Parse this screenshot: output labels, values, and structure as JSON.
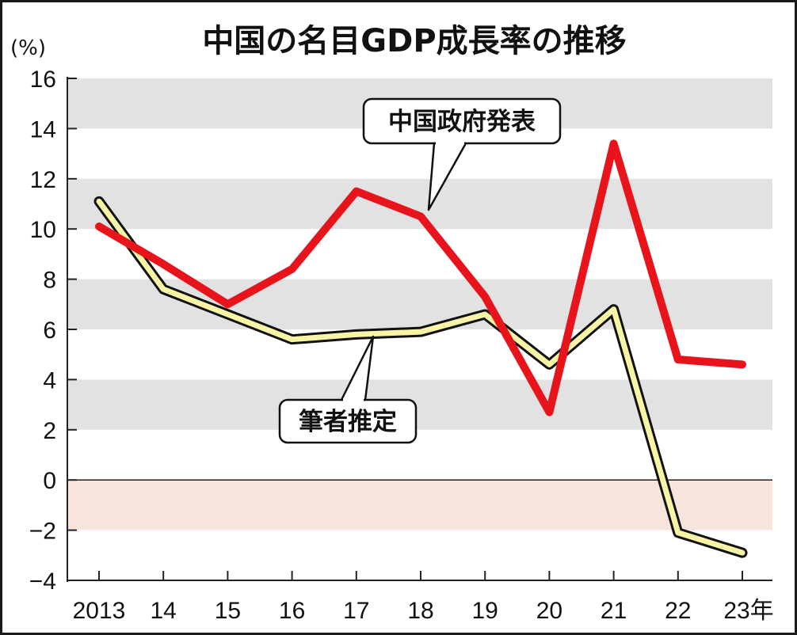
{
  "chart_data": {
    "type": "line",
    "title": "中国の名目GDP成長率の推移",
    "unit_label": "(%)",
    "categories": [
      "2013",
      "14",
      "15",
      "16",
      "17",
      "18",
      "19",
      "20",
      "21",
      "22",
      "23年"
    ],
    "x": [
      2013,
      2014,
      2015,
      2016,
      2017,
      2018,
      2019,
      2020,
      2021,
      2022,
      2023
    ],
    "ylim": [
      -4,
      16
    ],
    "yticks": [
      16,
      14,
      12,
      10,
      8,
      6,
      4,
      2,
      0,
      -2,
      -4
    ],
    "ytick_labels": [
      "16",
      "14",
      "12",
      "10",
      "8",
      "6",
      "4",
      "2",
      "0",
      "−2",
      "−4"
    ],
    "grid": "alternating horizontal gray bands; pink band below 0",
    "series": [
      {
        "name": "中国政府発表",
        "color": "#e8141c",
        "values": [
          10.1,
          8.6,
          7.0,
          8.4,
          11.5,
          10.5,
          7.3,
          2.7,
          13.4,
          4.8,
          4.6
        ]
      },
      {
        "name": "筆者推定",
        "color": "#f8f4a6",
        "outline_color": "#111111",
        "values": [
          11.1,
          7.6,
          6.6,
          5.6,
          5.8,
          5.9,
          6.6,
          4.6,
          6.8,
          -2.1,
          -2.9
        ]
      }
    ],
    "colors": {
      "band_gray": "#e2e2e2",
      "band_pink": "#f7e4da",
      "axis": "#222222"
    }
  }
}
